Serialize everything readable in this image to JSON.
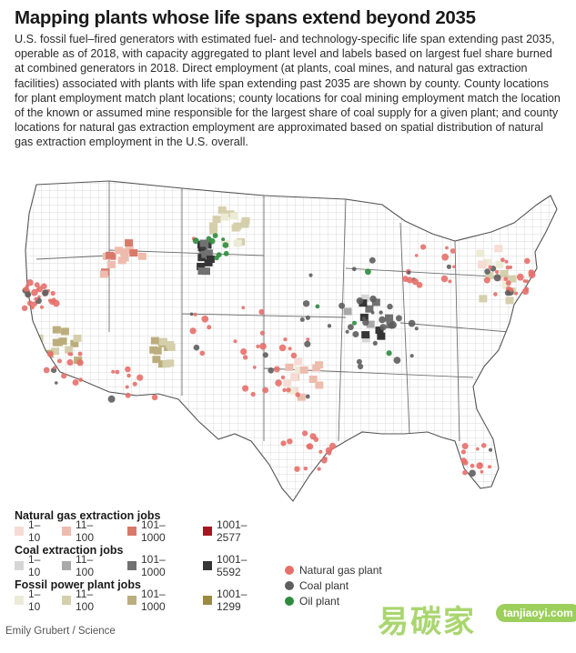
{
  "title": "Mapping plants whose life spans extend beyond 2035",
  "description": "U.S. fossil fuel–fired generators with estimated fuel- and technology-specific life span extending past 2035, operable as of 2018, with capacity aggregated to plant level and labels based on largest fuel share burned at combined generators in 2018. Direct employment (at plants, coal mines, and natural gas extraction facilities) associated with plants with life span extending past 2035 are shown by county. County locations for plant employment match plant locations; county locations for coal mining employment match the location of the known or assumed mine responsible for the largest share of coal supply for a given plant; and county locations for natural gas extraction employment are approximated based on spatial distribution of natural gas extraction employment in the U.S. overall.",
  "legend": {
    "gas": {
      "title": "Natural gas extraction jobs",
      "items": [
        {
          "label": "1–10",
          "color": "#f6dcd4"
        },
        {
          "label": "11–100",
          "color": "#eebcae"
        },
        {
          "label": "101–1000",
          "color": "#d9796a"
        },
        {
          "label": "1001–2577",
          "color": "#a5171f"
        }
      ]
    },
    "coal": {
      "title": "Coal extraction jobs",
      "items": [
        {
          "label": "1–10",
          "color": "#d6d6d6"
        },
        {
          "label": "11–100",
          "color": "#a9a9a9"
        },
        {
          "label": "101–1000",
          "color": "#717171"
        },
        {
          "label": "1001–5592",
          "color": "#353535"
        }
      ]
    },
    "plant_jobs": {
      "title": "Fossil power plant jobs",
      "items": [
        {
          "label": "1–10",
          "color": "#ecebd6"
        },
        {
          "label": "11–100",
          "color": "#d5cfac"
        },
        {
          "label": "101–1000",
          "color": "#bcae7c"
        },
        {
          "label": "1001–1299",
          "color": "#9c8a3e"
        }
      ]
    },
    "plants": [
      {
        "label": "Natural gas plant",
        "color": "#e76f6a"
      },
      {
        "label": "Coal plant",
        "color": "#5e5e5e"
      },
      {
        "label": "Oil plant",
        "color": "#2e8b3d"
      }
    ]
  },
  "credit": "Emily Grubert / Science",
  "watermark": {
    "text": "易碳家",
    "badge": "tanjiaoyi.com"
  }
}
